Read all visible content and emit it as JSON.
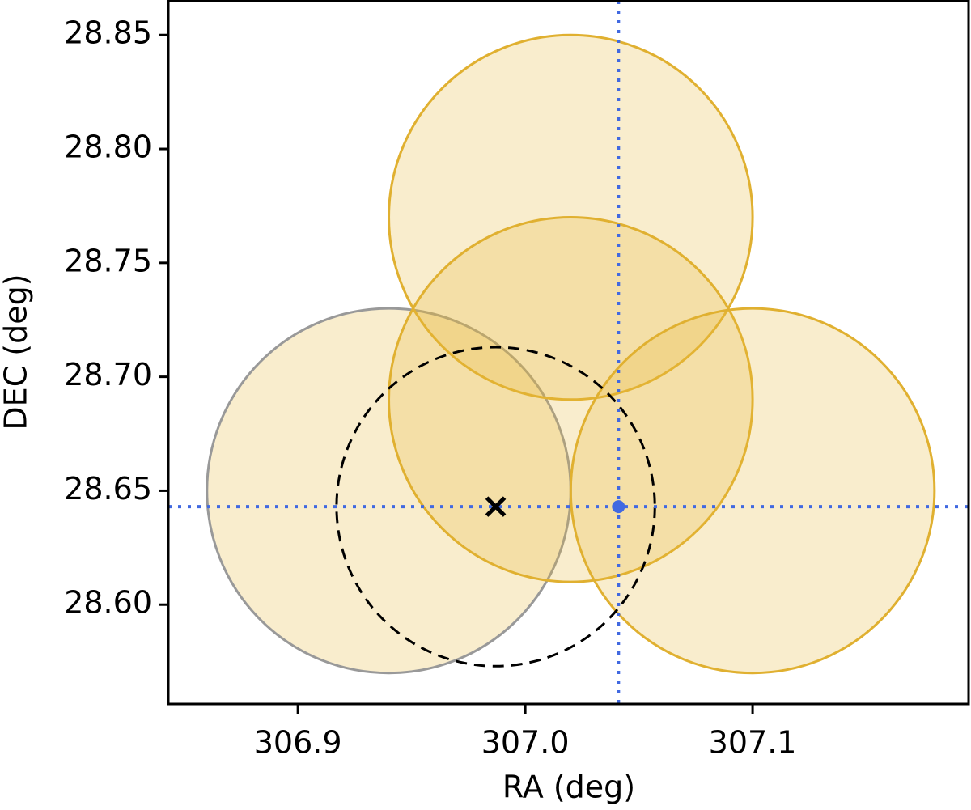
{
  "chart_data": {
    "type": "scatter",
    "xlabel": "RA (deg)",
    "ylabel": "DEC (deg)",
    "xlim": [
      306.843,
      307.195
    ],
    "ylim": [
      28.5564,
      28.865
    ],
    "xticks": [
      306.9,
      {
        "value": 307.0,
        "label": "307.0"
      },
      307.1
    ],
    "yticks": [
      28.85,
      {
        "value": 28.8,
        "label": "28.80"
      },
      28.75,
      {
        "value": 28.7,
        "label": "28.70"
      },
      28.65,
      {
        "value": 28.6,
        "label": "28.60"
      }
    ],
    "circles": [
      {
        "x": 306.94,
        "y": 28.65,
        "r": 0.08,
        "fill": "#e6b839",
        "edge": "#999999"
      },
      {
        "x": 307.02,
        "y": 28.77,
        "r": 0.08,
        "fill": "#e6b839",
        "edge": "#e0b030"
      },
      {
        "x": 307.02,
        "y": 28.69,
        "r": 0.08,
        "fill": "#e6b839",
        "edge": "#e0b030"
      },
      {
        "x": 307.1,
        "y": 28.65,
        "r": 0.08,
        "fill": "#e6b839",
        "edge": "#e0b030"
      }
    ],
    "fill_alpha": 0.25,
    "dashed_circle": {
      "x": 306.987,
      "y": 28.643,
      "r": 0.07,
      "color": "#000000"
    },
    "cross": {
      "x": 306.987,
      "y": 28.643,
      "color": "#000000"
    },
    "point": {
      "x": 307.041,
      "y": 28.643,
      "color": "#4169e1"
    }
  }
}
